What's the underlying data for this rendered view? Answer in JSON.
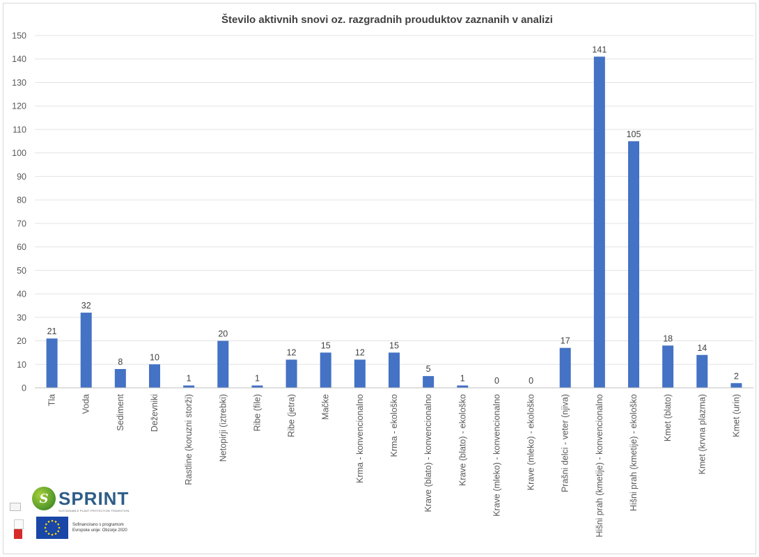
{
  "chart_data": {
    "type": "bar",
    "title": "Število aktivnih snovi oz. razgradnih prouduktov zaznanih v analizi",
    "categories": [
      "Tla",
      "Voda",
      "Sediment",
      "Deževniki",
      "Rastline (koruzni storži)",
      "Netopirji (iztrebki)",
      "Ribe (file)",
      "Ribe (jetra)",
      "Mačke",
      "Krma - konvencionalno",
      "Krma - ekološko",
      "Krave (blato) - konvencionalno",
      "Krave (blato) - ekološko",
      "Krave (mleko) - konvencionalno",
      "Krave (mleko) - ekološko",
      "Prašni delci - veter (njiva)",
      "Hišni prah (kmetije) - konvencionalno",
      "Hišni prah (kmetije) - ekološko",
      "Kmet (blato)",
      "Kmet (krvna plazma)",
      "Kmet (urin)"
    ],
    "values": [
      21,
      32,
      8,
      10,
      1,
      20,
      1,
      12,
      15,
      12,
      15,
      5,
      1,
      0,
      0,
      17,
      141,
      105,
      18,
      14,
      2
    ],
    "ylim": [
      0,
      150
    ],
    "yticks": [
      0,
      10,
      20,
      30,
      40,
      50,
      60,
      70,
      80,
      90,
      100,
      110,
      120,
      130,
      140,
      150
    ],
    "grid": true,
    "bar_color": "#4472c4",
    "data_labels": true
  },
  "logos": {
    "sprint_word": "SPRINT",
    "sprint_tagline": "SUSTAINABLE PLANT PROTECTION TRANSITION",
    "eu_text_line1": "Sofinancirano s programom",
    "eu_text_line2": "Evropske unije: Obzorje 2020"
  }
}
